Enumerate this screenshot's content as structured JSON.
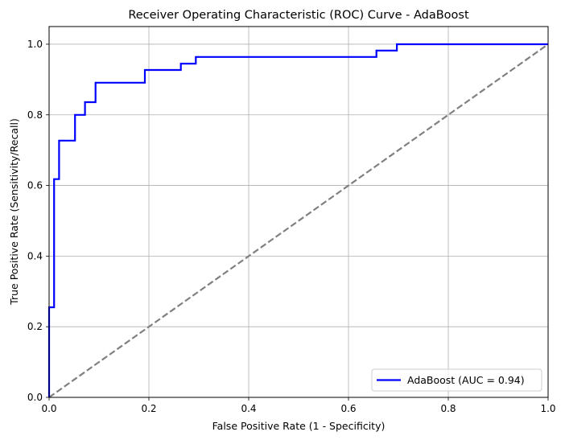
{
  "chart_data": {
    "type": "line",
    "title": "Receiver Operating Characteristic (ROC) Curve - AdaBoost",
    "xlabel": "False Positive Rate (1 - Specificity)",
    "ylabel": "True Positive Rate (Sensitivity/Recall)",
    "xlim": [
      0.0,
      1.0
    ],
    "ylim": [
      0.0,
      1.05
    ],
    "xticks": [
      "0.0",
      "0.2",
      "0.4",
      "0.6",
      "0.8",
      "1.0"
    ],
    "yticks": [
      "0.0",
      "0.2",
      "0.4",
      "0.6",
      "0.8",
      "1.0"
    ],
    "xtick_values": [
      0.0,
      0.2,
      0.4,
      0.6,
      0.8,
      1.0
    ],
    "ytick_values": [
      0.0,
      0.2,
      0.4,
      0.6,
      0.8,
      1.0
    ],
    "grid": true,
    "legend_position": "lower-right",
    "series": [
      {
        "name": "AdaBoost (AUC = 0.94)",
        "color": "#0000ff",
        "style": "solid",
        "step": true,
        "x": [
          0.0,
          0.0,
          0.01,
          0.01,
          0.02,
          0.02,
          0.052,
          0.052,
          0.072,
          0.072,
          0.093,
          0.093,
          0.192,
          0.192,
          0.264,
          0.264,
          0.294,
          0.294,
          0.656,
          0.656,
          0.697,
          0.697,
          1.0
        ],
        "y": [
          0.0,
          0.255,
          0.255,
          0.618,
          0.618,
          0.727,
          0.727,
          0.8,
          0.8,
          0.836,
          0.836,
          0.891,
          0.891,
          0.927,
          0.927,
          0.945,
          0.945,
          0.964,
          0.964,
          0.982,
          0.982,
          1.0,
          1.0
        ]
      },
      {
        "color": "#808080",
        "style": "dashed",
        "x": [
          0.0,
          1.0
        ],
        "y": [
          0.0,
          1.0
        ]
      }
    ]
  }
}
